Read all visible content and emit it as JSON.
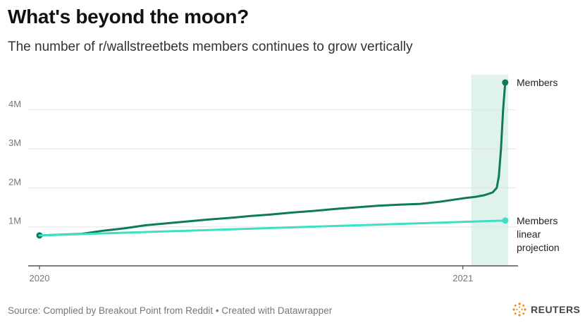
{
  "header": {
    "title": "What's beyond the moon?",
    "subtitle": "The number of r/wallstreetbets members continues to grow vertically"
  },
  "footer": {
    "source": "Source: Complied by Breakout Point from Reddit • Created with Datawrapper",
    "logo_text": "REUTERS",
    "logo_icon": "reuters-dot-icon"
  },
  "colors": {
    "members": "#0e7a5a",
    "projection": "#3ee0c4",
    "highlight": "#dff3ec",
    "grid": "#e3e3e3",
    "axis": "#333333"
  },
  "chart_data": {
    "type": "line",
    "title": "What's beyond the moon?",
    "subtitle": "The number of r/wallstreetbets members continues to grow vertically",
    "xlabel": "",
    "ylabel": "",
    "x_ticks": [
      {
        "label": "2020",
        "value": 2020.0
      },
      {
        "label": "2021",
        "value": 2021.0
      }
    ],
    "y_ticks": [
      {
        "label": "1M",
        "value": 1000000
      },
      {
        "label": "2M",
        "value": 2000000
      },
      {
        "label": "3M",
        "value": 3000000
      },
      {
        "label": "4M",
        "value": 4000000
      }
    ],
    "xlim": [
      2020.0,
      2021.107
    ],
    "ylim": [
      0,
      4900000
    ],
    "grid": "horizontal",
    "highlight_range": [
      2021.02,
      2021.107
    ],
    "series": [
      {
        "name": "Members",
        "color": "#0e7a5a",
        "x": [
          2020.0,
          2020.05,
          2020.1,
          2020.15,
          2020.2,
          2020.25,
          2020.3,
          2020.35,
          2020.4,
          2020.45,
          2020.5,
          2020.55,
          2020.6,
          2020.65,
          2020.7,
          2020.75,
          2020.8,
          2020.85,
          2020.9,
          2020.95,
          2021.0,
          2021.03,
          2021.05,
          2021.07,
          2021.08,
          2021.085,
          2021.09,
          2021.095,
          2021.1
        ],
        "values": [
          780000,
          800000,
          820000,
          900000,
          960000,
          1040000,
          1090000,
          1140000,
          1190000,
          1230000,
          1280000,
          1320000,
          1370000,
          1410000,
          1460000,
          1500000,
          1540000,
          1570000,
          1590000,
          1650000,
          1730000,
          1770000,
          1810000,
          1880000,
          2000000,
          2300000,
          3000000,
          4000000,
          4700000
        ]
      },
      {
        "name": "Members linear projection",
        "color": "#3ee0c4",
        "x": [
          2020.0,
          2021.1
        ],
        "values": [
          780000,
          1160000
        ]
      }
    ]
  }
}
